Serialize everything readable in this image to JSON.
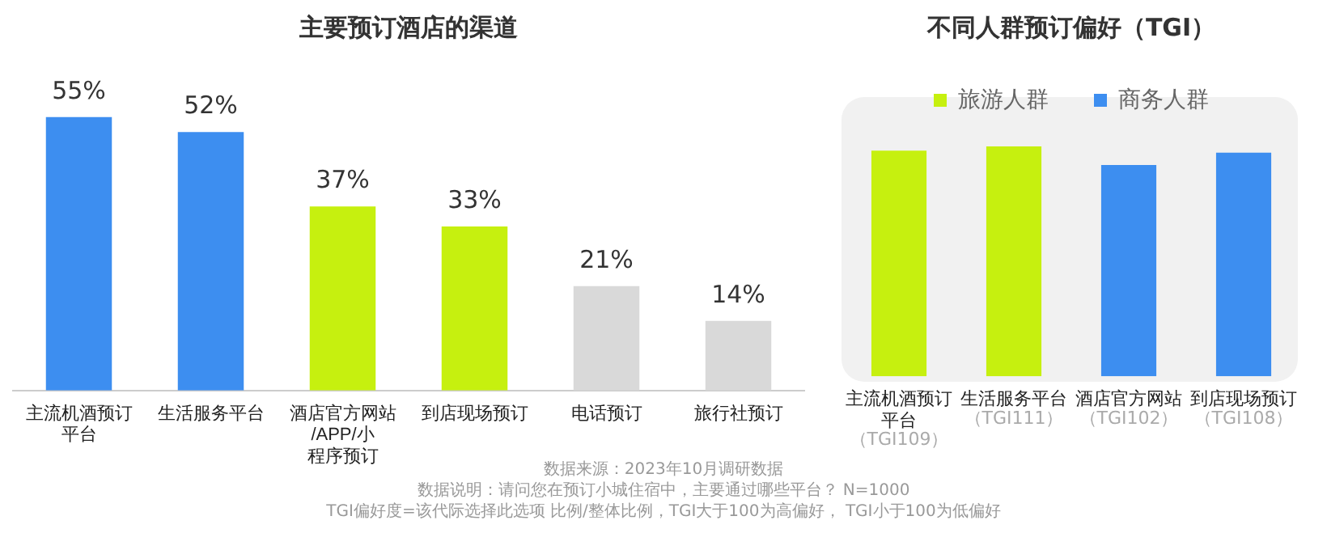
{
  "chart_data": [
    {
      "type": "bar",
      "title": "主要预订酒店的渠道",
      "categories": [
        "主流机酒预订平台",
        "生活服务平台",
        "酒店官方网站/APP/小程序预订",
        "到店现场预订",
        "电话预订",
        "旅行社预订"
      ],
      "values": [
        55,
        52,
        37,
        33,
        21,
        14
      ],
      "colors": [
        "#3d8ef0",
        "#3d8ef0",
        "#c6f00f",
        "#c6f00f",
        "#d9d9d9",
        "#d9d9d9"
      ],
      "value_labels": [
        "55%",
        "52%",
        "37%",
        "33%",
        "21%",
        "14%"
      ],
      "grid": false,
      "legend": false,
      "tick_labels": "x",
      "annotations": [
        "数据来源：2023年10月调研数据",
        "数据说明：请问您在预订小城住宿中，主要通过哪些平台？ N=1000",
        "TGI偏好度=该代际选择此选项 比例/整体比例，TGI大于100为高偏好， TGI小于100为低偏好"
      ]
    },
    {
      "type": "bar",
      "title": "不同人群预订偏好（TGI）",
      "categories": [
        "主流机酒预订平台",
        "生活服务平台",
        "酒店官方网站",
        "到店现场预订"
      ],
      "grid": false,
      "legend": "top",
      "tick_labels": "x",
      "series": [
        {
          "name": "旅游人群",
          "color": "#c6f00f",
          "values": [
            109,
            111,
            null,
            null
          ],
          "value_labels": [
            "（TGI109）",
            "（TGI111）",
            null,
            null
          ]
        },
        {
          "name": "商务人群",
          "color": "#3d8ef0",
          "values": [
            null,
            null,
            102,
            108
          ],
          "value_labels": [
            null,
            null,
            "（TGI102）",
            "（TGI108）"
          ]
        }
      ]
    }
  ]
}
